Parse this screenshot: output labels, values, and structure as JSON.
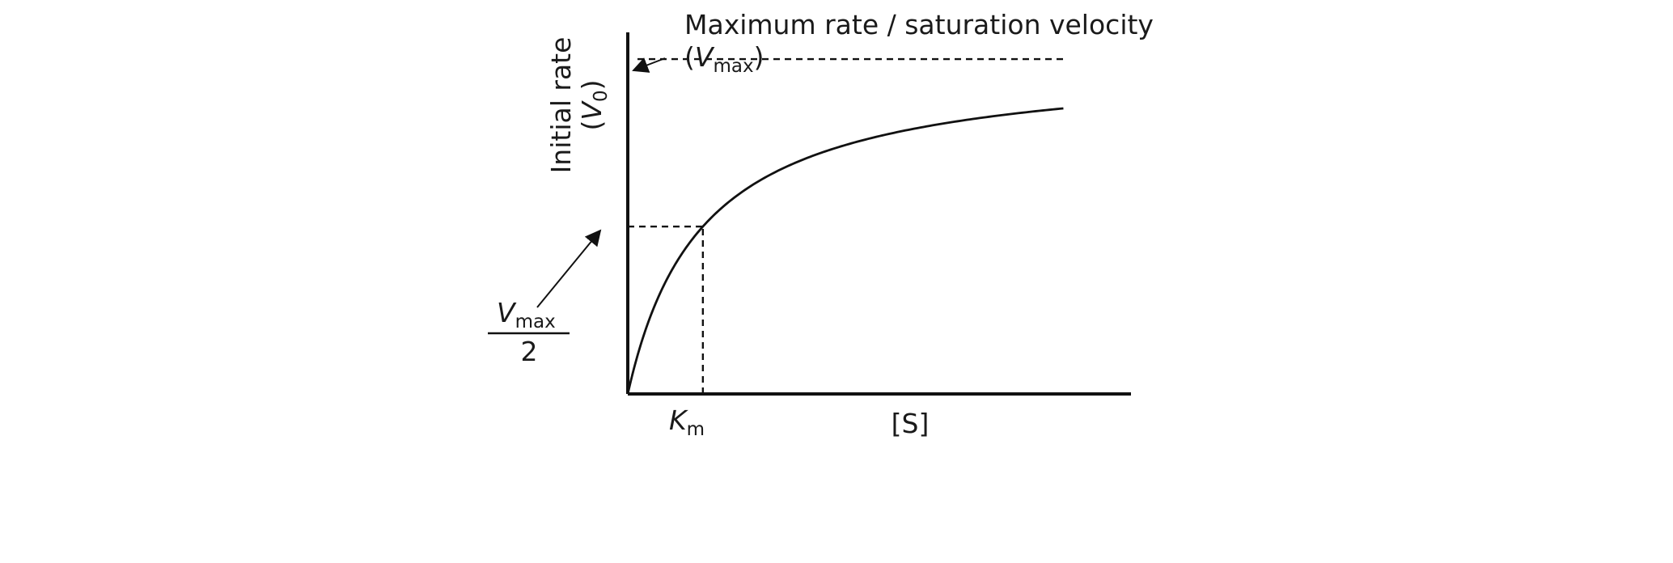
{
  "chart_data": {
    "type": "line",
    "title": "",
    "xlabel": "[S]",
    "ylabel": {
      "line1": "Initial rate",
      "line2_prefix": "(",
      "line2_var": "V",
      "line2_sub": "0",
      "line2_suffix": ")"
    },
    "model": "michaelis-menten",
    "params": {
      "Vmax": 1,
      "Km": 1
    },
    "xlim": [
      0,
      6.7
    ],
    "ylim": [
      0,
      1.08
    ],
    "series": [
      {
        "x": [
          0,
          0.25,
          0.5,
          1,
          1.5,
          2,
          3,
          4,
          5,
          5.8
        ]
      }
    ],
    "reference_lines": {
      "vmax_line": {
        "y": 1,
        "x": [
          0,
          5.8
        ]
      },
      "half_vmax_h": {
        "y": 0.5,
        "x": [
          0,
          1
        ]
      },
      "km_v": {
        "x": 1,
        "y": [
          0,
          0.5
        ]
      }
    },
    "annotations": {
      "vmax_title": "Maximum rate / saturation velocity",
      "vmax_symbol": {
        "open": "(",
        "var": "V",
        "sub": "max",
        "close": ")"
      },
      "half_vmax": {
        "var": "V",
        "sub": "max",
        "denominator": "2"
      },
      "km": {
        "var": "K",
        "sub": "m"
      }
    }
  }
}
